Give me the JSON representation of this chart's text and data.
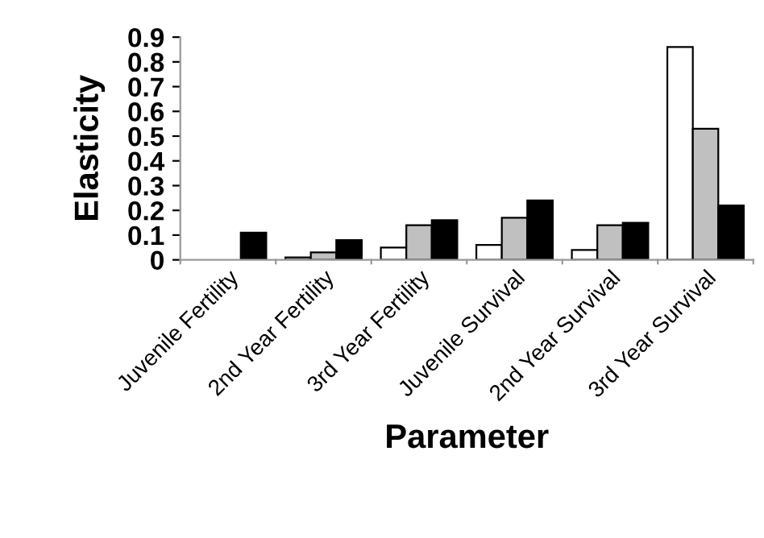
{
  "chart_data": {
    "type": "bar",
    "xlabel": "Parameter",
    "ylabel": "Elasticity",
    "categories": [
      "Juvenile Fertility",
      "2nd Year Fertility",
      "3rd Year Fertility",
      "Juvenile Survival",
      "2nd Year Survival",
      "3rd Year Survival"
    ],
    "series": [
      {
        "color": "#ffffff",
        "values": [
          null,
          0.01,
          0.05,
          0.06,
          0.04,
          0.86
        ]
      },
      {
        "color": "#c0c0c0",
        "values": [
          null,
          0.03,
          0.14,
          0.17,
          0.14,
          0.53
        ]
      },
      {
        "color": "#000000",
        "values": [
          0.11,
          0.08,
          0.16,
          0.24,
          0.15,
          0.22
        ]
      }
    ],
    "ylim": [
      0,
      0.9
    ],
    "yticks": [
      0,
      0.1,
      0.2,
      0.3,
      0.4,
      0.5,
      0.6,
      0.7,
      0.8,
      0.9
    ],
    "grid": false,
    "legend": false
  }
}
